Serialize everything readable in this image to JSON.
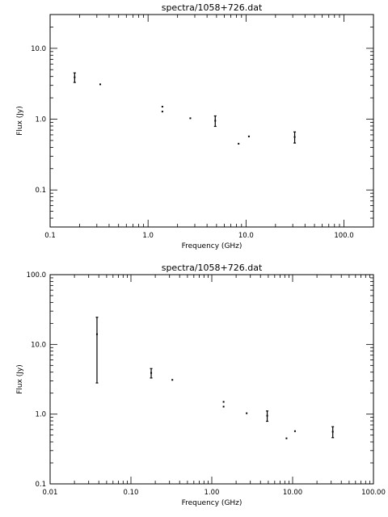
{
  "chart_data": [
    {
      "type": "scatter",
      "title": "spectra/1058+726.dat",
      "xlabel": "Frequency (GHz)",
      "ylabel": "Flux (Jy)",
      "xscale": "log",
      "yscale": "log",
      "xlim": [
        0.1,
        200
      ],
      "ylim": [
        0.03,
        30
      ],
      "xticks": [
        0.1,
        1.0,
        10.0,
        100.0
      ],
      "xtick_labels": [
        "0.1",
        "1.0",
        "10.0",
        "100.0"
      ],
      "yticks": [
        0.1,
        1.0,
        10.0
      ],
      "ytick_labels": [
        "0.1",
        "1.0",
        "10.0"
      ],
      "points": [
        {
          "x": 0.178,
          "y": 3.9,
          "err": 0.6
        },
        {
          "x": 0.325,
          "y": 3.1,
          "err": 0
        },
        {
          "x": 1.4,
          "y": 1.5,
          "err": 0
        },
        {
          "x": 1.4,
          "y": 1.28,
          "err": 0
        },
        {
          "x": 2.7,
          "y": 1.03,
          "err": 0
        },
        {
          "x": 4.85,
          "y": 0.95,
          "err": 0.16
        },
        {
          "x": 8.4,
          "y": 0.45,
          "err": 0
        },
        {
          "x": 10.7,
          "y": 0.57,
          "err": 0
        },
        {
          "x": 31.4,
          "y": 0.56,
          "err": 0.1
        }
      ]
    },
    {
      "type": "scatter",
      "title": "spectra/1058+726.dat",
      "xlabel": "Frequency (GHz)",
      "ylabel": "Flux (Jy)",
      "xscale": "log",
      "yscale": "log",
      "xlim": [
        0.01,
        100
      ],
      "ylim": [
        0.1,
        100
      ],
      "xticks": [
        0.01,
        0.1,
        1.0,
        10.0,
        100.0
      ],
      "xtick_labels": [
        "0.01",
        "0.10",
        "1.00",
        "10.00",
        "100.00"
      ],
      "yticks": [
        0.1,
        1.0,
        10.0,
        100.0
      ],
      "ytick_labels": [
        "0.1",
        "1.0",
        "10.0",
        "100.0"
      ],
      "points": [
        {
          "x": 0.038,
          "y": 14,
          "err_lo": 2.8,
          "err_hi": 24.5
        },
        {
          "x": 0.178,
          "y": 3.9,
          "err": 0.6
        },
        {
          "x": 0.325,
          "y": 3.1,
          "err": 0
        },
        {
          "x": 1.4,
          "y": 1.5,
          "err": 0
        },
        {
          "x": 1.4,
          "y": 1.28,
          "err": 0
        },
        {
          "x": 2.7,
          "y": 1.03,
          "err": 0
        },
        {
          "x": 4.85,
          "y": 0.95,
          "err": 0.16
        },
        {
          "x": 8.4,
          "y": 0.45,
          "err": 0
        },
        {
          "x": 10.7,
          "y": 0.57,
          "err": 0
        },
        {
          "x": 31.4,
          "y": 0.56,
          "err": 0.1
        }
      ]
    }
  ]
}
